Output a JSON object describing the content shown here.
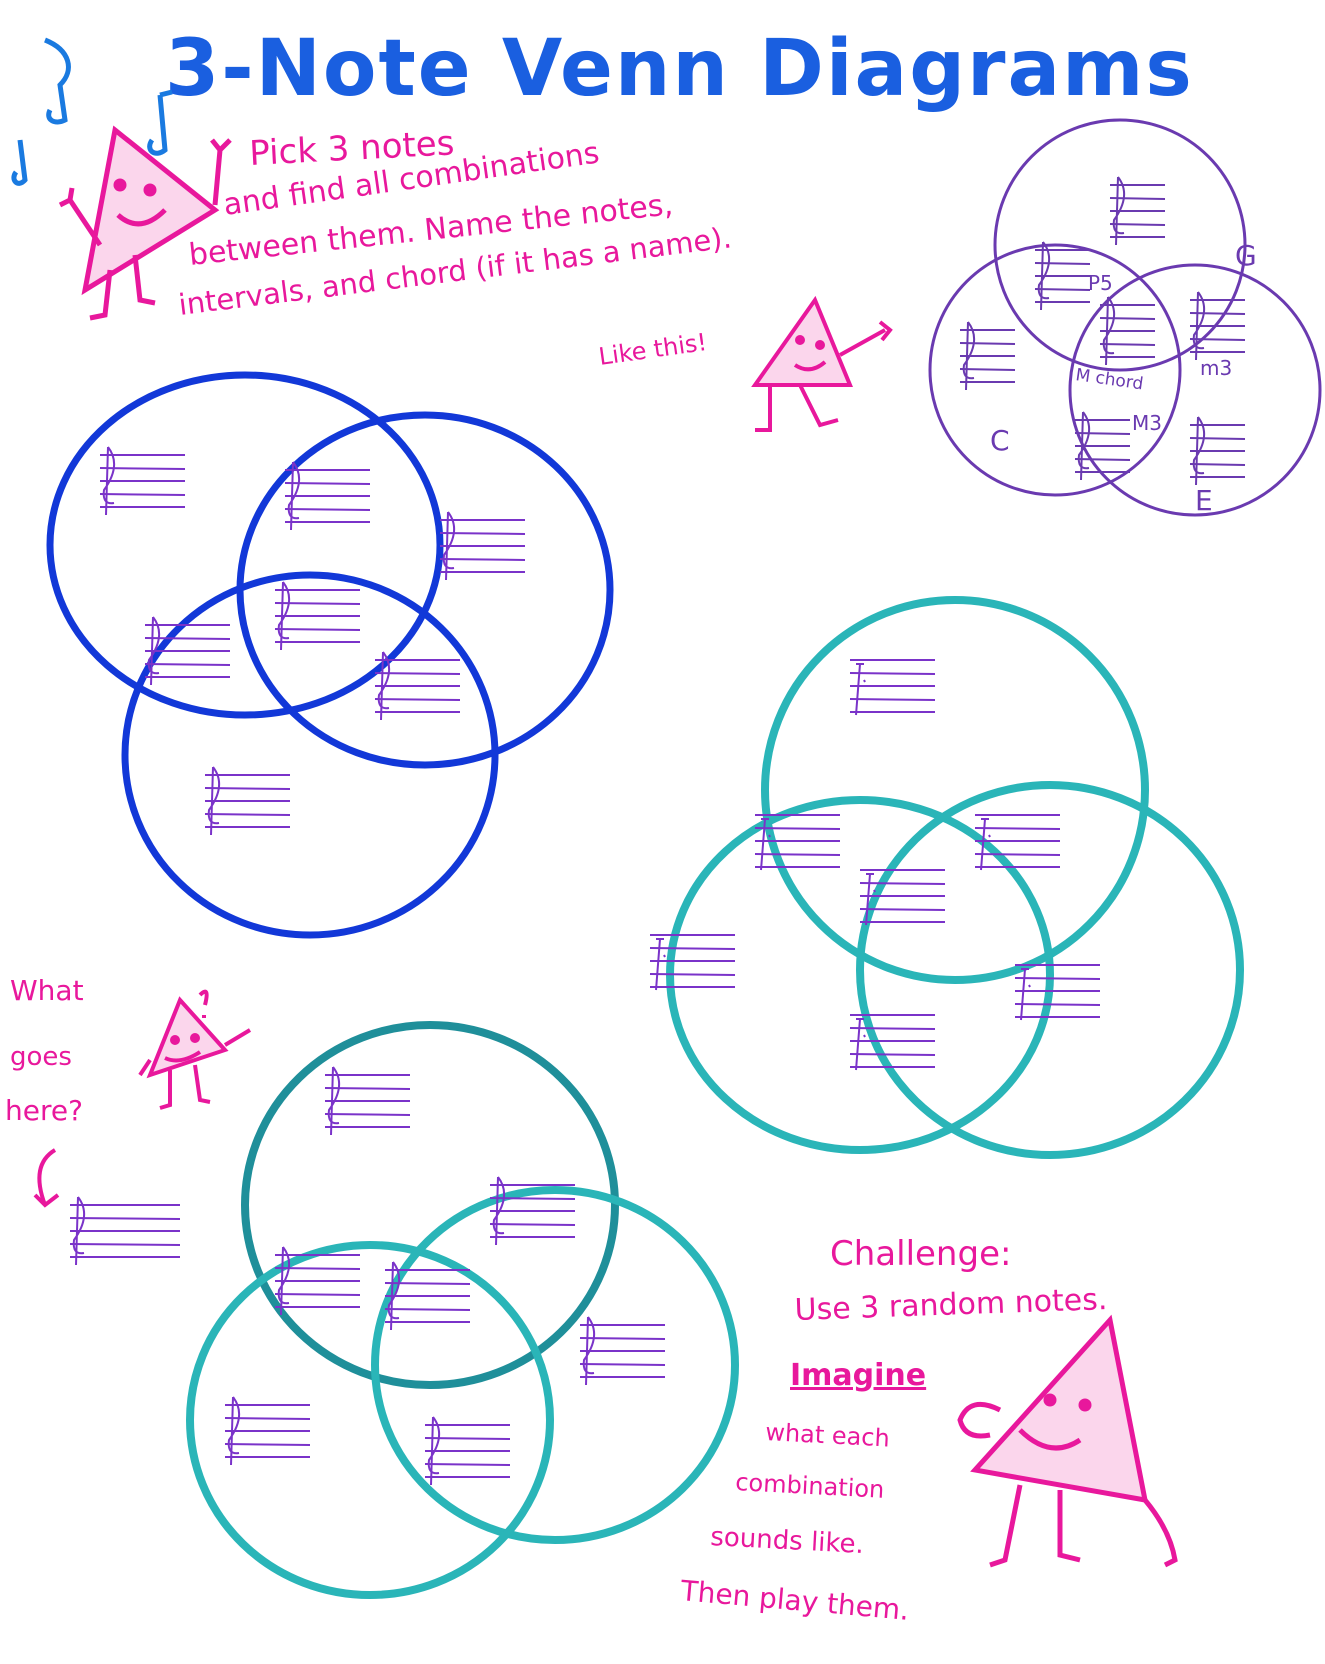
{
  "title": "3-Note Venn Diagrams",
  "instructions": {
    "line1": "Pick 3 notes",
    "line2": "and find all combinations",
    "line3": "between them. Name the notes,",
    "line4": "intervals, and chord (if it has a name)."
  },
  "example": {
    "caption": "Like this!",
    "notes": {
      "top": "G",
      "left": "C",
      "bottom": "E"
    },
    "labels": {
      "g_c": "P5",
      "g_e": "m3",
      "c_e": "M3",
      "center": "M chord"
    }
  },
  "hint": {
    "line1": "What",
    "line2": "goes",
    "line3": "here?"
  },
  "challenge": {
    "heading": "Challenge:",
    "line1": "Use 3 random notes.",
    "imagine": "Imagine",
    "line2": "what each",
    "line3": "combination",
    "line4": "sounds like.",
    "line5": "Then play them."
  },
  "colors": {
    "title": "#1a5fe0",
    "pink": "#e8189c",
    "purple": "#6a2bb8",
    "blue_venn": "#1238d8",
    "teal_venn": "#2ab5b8",
    "teal_dark": "#1f8f9a",
    "staff": "#7a33c9",
    "example_venn": "#6a3ab0"
  }
}
